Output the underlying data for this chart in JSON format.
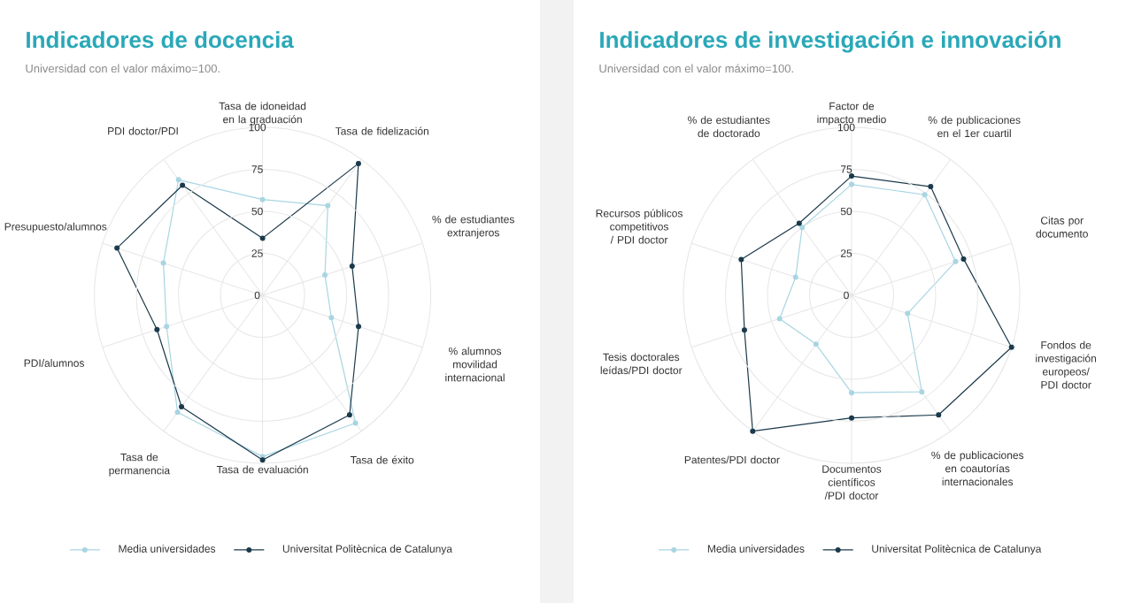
{
  "chart_data": [
    {
      "type": "radar",
      "title": "Indicadores de docencia",
      "subtitle": "Universidad con el valor máximo=100.",
      "categories": [
        "Tasa de idoneidad en la graduación",
        "Tasa de fidelización",
        "% de estudiantes extranjeros",
        "% alumnos movilidad internacional",
        "Tasa de éxito",
        "Tasa de evaluación",
        "Tasa de permanencia",
        "PDI/alumnos",
        "Presupuesto/alumnos",
        "PDI doctor/PDI"
      ],
      "series": [
        {
          "name": "Media universidades",
          "color": "#a8d5e2",
          "values": [
            57,
            66,
            39,
            43,
            94,
            96,
            86,
            60,
            62,
            85
          ]
        },
        {
          "name": "Universitat Politècnica de Catalunya",
          "color": "#1b3a4b",
          "values": [
            34,
            97,
            56,
            60,
            88,
            98,
            82,
            66,
            91,
            81
          ]
        }
      ],
      "ylim": [
        0,
        100
      ],
      "yticks": [
        0,
        25,
        50,
        75,
        100
      ],
      "grid": true,
      "legend": "bottom",
      "marker": "circle"
    },
    {
      "type": "radar",
      "title": "Indicadores de investigación e innovación",
      "subtitle": "Universidad con el valor máximo=100.",
      "categories": [
        "Factor de impacto medio",
        "% de publicaciones en el 1er cuartil",
        "Citas por documento",
        "Fondos de investigación europeos/ PDI doctor",
        "% de publicaciones en coautorías internacionales",
        "Documentos científicos /PDI doctor",
        "Patentes/PDI doctor",
        "Tesis doctorales leídas/PDI doctor",
        "Recursos públicos competitivos / PDI doctor",
        "% de estudiantes de doctorado"
      ],
      "series": [
        {
          "name": "Media universidades",
          "color": "#a8d5e2",
          "values": [
            66,
            74,
            65,
            35,
            71,
            58,
            36,
            45,
            35,
            50
          ]
        },
        {
          "name": "Universitat Politècnica de Catalunya",
          "color": "#1b3a4b",
          "values": [
            71,
            80,
            70,
            100,
            88,
            73,
            100,
            67,
            69,
            53
          ]
        }
      ],
      "ylim": [
        0,
        100
      ],
      "yticks": [
        0,
        25,
        50,
        75,
        100
      ],
      "grid": true,
      "legend": "bottom",
      "marker": "circle"
    }
  ]
}
